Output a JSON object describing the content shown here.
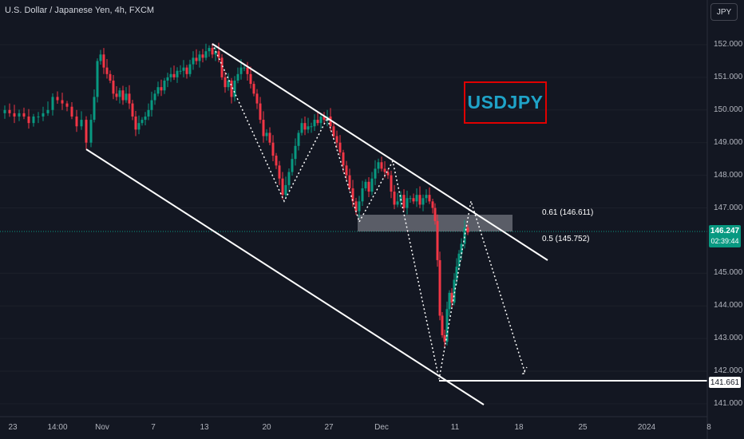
{
  "header": {
    "symbol_title": "U.S. Dollar / Japanese Yen, 4h, FXCM",
    "currency_button": "JPY"
  },
  "annotation": {
    "ticker_text": "USDJPY"
  },
  "fib_labels": {
    "level_061": "0.61 (146.611)",
    "level_05": "0.5 (145.752)"
  },
  "price_tags": {
    "last_price": "146.247",
    "countdown": "02:39:44",
    "support_level": "141.661"
  },
  "colors": {
    "background": "#131722",
    "up_candle": "#089981",
    "down_candle": "#f23645",
    "accent_ticker": "#1fa3c8",
    "ticker_border": "#e00000"
  },
  "chart_data": {
    "type": "candlestick",
    "symbol": "U.S. Dollar / Japanese Yen",
    "interval": "4h",
    "source": "FXCM",
    "ylim": [
      141.0,
      152.0
    ],
    "y_ticks": [
      "152.000",
      "151.000",
      "150.000",
      "149.000",
      "148.000",
      "147.000",
      "145.000",
      "144.000",
      "143.000",
      "142.000",
      "141.000"
    ],
    "x_ticks": [
      "23",
      "14:00",
      "Nov",
      "7",
      "13",
      "20",
      "27",
      "Dec",
      "11",
      "18",
      "25",
      "2024",
      "8"
    ],
    "close_path": [
      [
        0,
        149.9
      ],
      [
        6,
        150.0
      ],
      [
        12,
        149.9
      ],
      [
        18,
        149.8
      ],
      [
        24,
        149.9
      ],
      [
        30,
        149.8
      ],
      [
        36,
        149.6
      ],
      [
        42,
        149.8
      ],
      [
        48,
        149.8
      ],
      [
        54,
        149.9
      ],
      [
        60,
        150.0
      ],
      [
        66,
        150.4
      ],
      [
        72,
        150.3
      ],
      [
        78,
        150.2
      ],
      [
        84,
        150.1
      ],
      [
        90,
        149.8
      ],
      [
        96,
        149.5
      ],
      [
        102,
        149.7
      ],
      [
        108,
        149.0
      ],
      [
        114,
        149.7
      ],
      [
        118,
        150.4
      ],
      [
        122,
        151.5
      ],
      [
        126,
        151.7
      ],
      [
        130,
        151.3
      ],
      [
        134,
        151.1
      ],
      [
        138,
        150.9
      ],
      [
        142,
        150.5
      ],
      [
        146,
        150.4
      ],
      [
        150,
        150.6
      ],
      [
        154,
        150.3
      ],
      [
        158,
        150.5
      ],
      [
        162,
        150.2
      ],
      [
        166,
        149.8
      ],
      [
        170,
        149.4
      ],
      [
        174,
        149.6
      ],
      [
        178,
        149.7
      ],
      [
        182,
        149.8
      ],
      [
        186,
        150.0
      ],
      [
        190,
        150.3
      ],
      [
        194,
        150.5
      ],
      [
        198,
        150.7
      ],
      [
        202,
        150.6
      ],
      [
        206,
        150.9
      ],
      [
        210,
        151.0
      ],
      [
        214,
        151.1
      ],
      [
        218,
        151.0
      ],
      [
        222,
        151.2
      ],
      [
        226,
        151.2
      ],
      [
        230,
        151.3
      ],
      [
        234,
        151.1
      ],
      [
        238,
        151.4
      ],
      [
        242,
        151.6
      ],
      [
        246,
        151.5
      ],
      [
        250,
        151.7
      ],
      [
        254,
        151.6
      ],
      [
        258,
        151.8
      ],
      [
        262,
        151.9
      ],
      [
        266,
        151.7
      ],
      [
        270,
        151.8
      ],
      [
        274,
        151.6
      ],
      [
        278,
        151.0
      ],
      [
        282,
        150.7
      ],
      [
        286,
        150.9
      ],
      [
        290,
        150.4
      ],
      [
        294,
        150.9
      ],
      [
        298,
        151.1
      ],
      [
        302,
        151.3
      ],
      [
        306,
        151.3
      ],
      [
        310,
        151.1
      ],
      [
        314,
        150.8
      ],
      [
        318,
        150.5
      ],
      [
        322,
        150.2
      ],
      [
        326,
        149.7
      ],
      [
        330,
        149.2
      ],
      [
        334,
        149.3
      ],
      [
        338,
        149.0
      ],
      [
        342,
        148.6
      ],
      [
        346,
        148.3
      ],
      [
        350,
        147.9
      ],
      [
        354,
        147.4
      ],
      [
        358,
        147.7
      ],
      [
        362,
        148.1
      ],
      [
        366,
        148.5
      ],
      [
        370,
        148.9
      ],
      [
        374,
        149.3
      ],
      [
        378,
        149.6
      ],
      [
        382,
        149.4
      ],
      [
        386,
        149.5
      ],
      [
        390,
        149.5
      ],
      [
        394,
        149.7
      ],
      [
        398,
        149.6
      ],
      [
        402,
        149.8
      ],
      [
        406,
        149.7
      ],
      [
        410,
        149.8
      ],
      [
        414,
        149.5
      ],
      [
        418,
        149.2
      ],
      [
        422,
        149.0
      ],
      [
        426,
        148.7
      ],
      [
        430,
        148.3
      ],
      [
        434,
        148.0
      ],
      [
        438,
        147.6
      ],
      [
        442,
        147.2
      ],
      [
        446,
        146.9
      ],
      [
        450,
        147.2
      ],
      [
        454,
        147.6
      ],
      [
        458,
        147.8
      ],
      [
        462,
        147.5
      ],
      [
        466,
        147.9
      ],
      [
        470,
        148.2
      ],
      [
        474,
        148.4
      ],
      [
        478,
        148.2
      ],
      [
        482,
        148.1
      ],
      [
        486,
        148.0
      ],
      [
        490,
        147.5
      ],
      [
        494,
        147.1
      ],
      [
        498,
        147.2
      ],
      [
        502,
        147.4
      ],
      [
        506,
        147.0
      ],
      [
        510,
        147.3
      ],
      [
        514,
        147.3
      ],
      [
        518,
        147.2
      ],
      [
        522,
        147.4
      ],
      [
        526,
        147.1
      ],
      [
        530,
        147.3
      ],
      [
        534,
        147.4
      ],
      [
        538,
        147.2
      ],
      [
        542,
        147.0
      ],
      [
        545,
        146.6
      ],
      [
        548,
        145.4
      ],
      [
        551,
        143.7
      ],
      [
        554,
        143.1
      ],
      [
        557,
        142.9
      ],
      [
        560,
        143.9
      ],
      [
        563,
        144.4
      ],
      [
        566,
        144.1
      ],
      [
        569,
        144.8
      ],
      [
        572,
        145.2
      ],
      [
        575,
        145.6
      ],
      [
        578,
        145.9
      ],
      [
        582,
        146.4
      ],
      [
        586,
        146.25
      ]
    ],
    "fibonacci": [
      {
        "ratio": 0.61,
        "price": 146.611
      },
      {
        "ratio": 0.5,
        "price": 145.752
      }
    ],
    "last_price": 146.247,
    "support_level": 141.661,
    "annotation_text": "USDJPY"
  }
}
